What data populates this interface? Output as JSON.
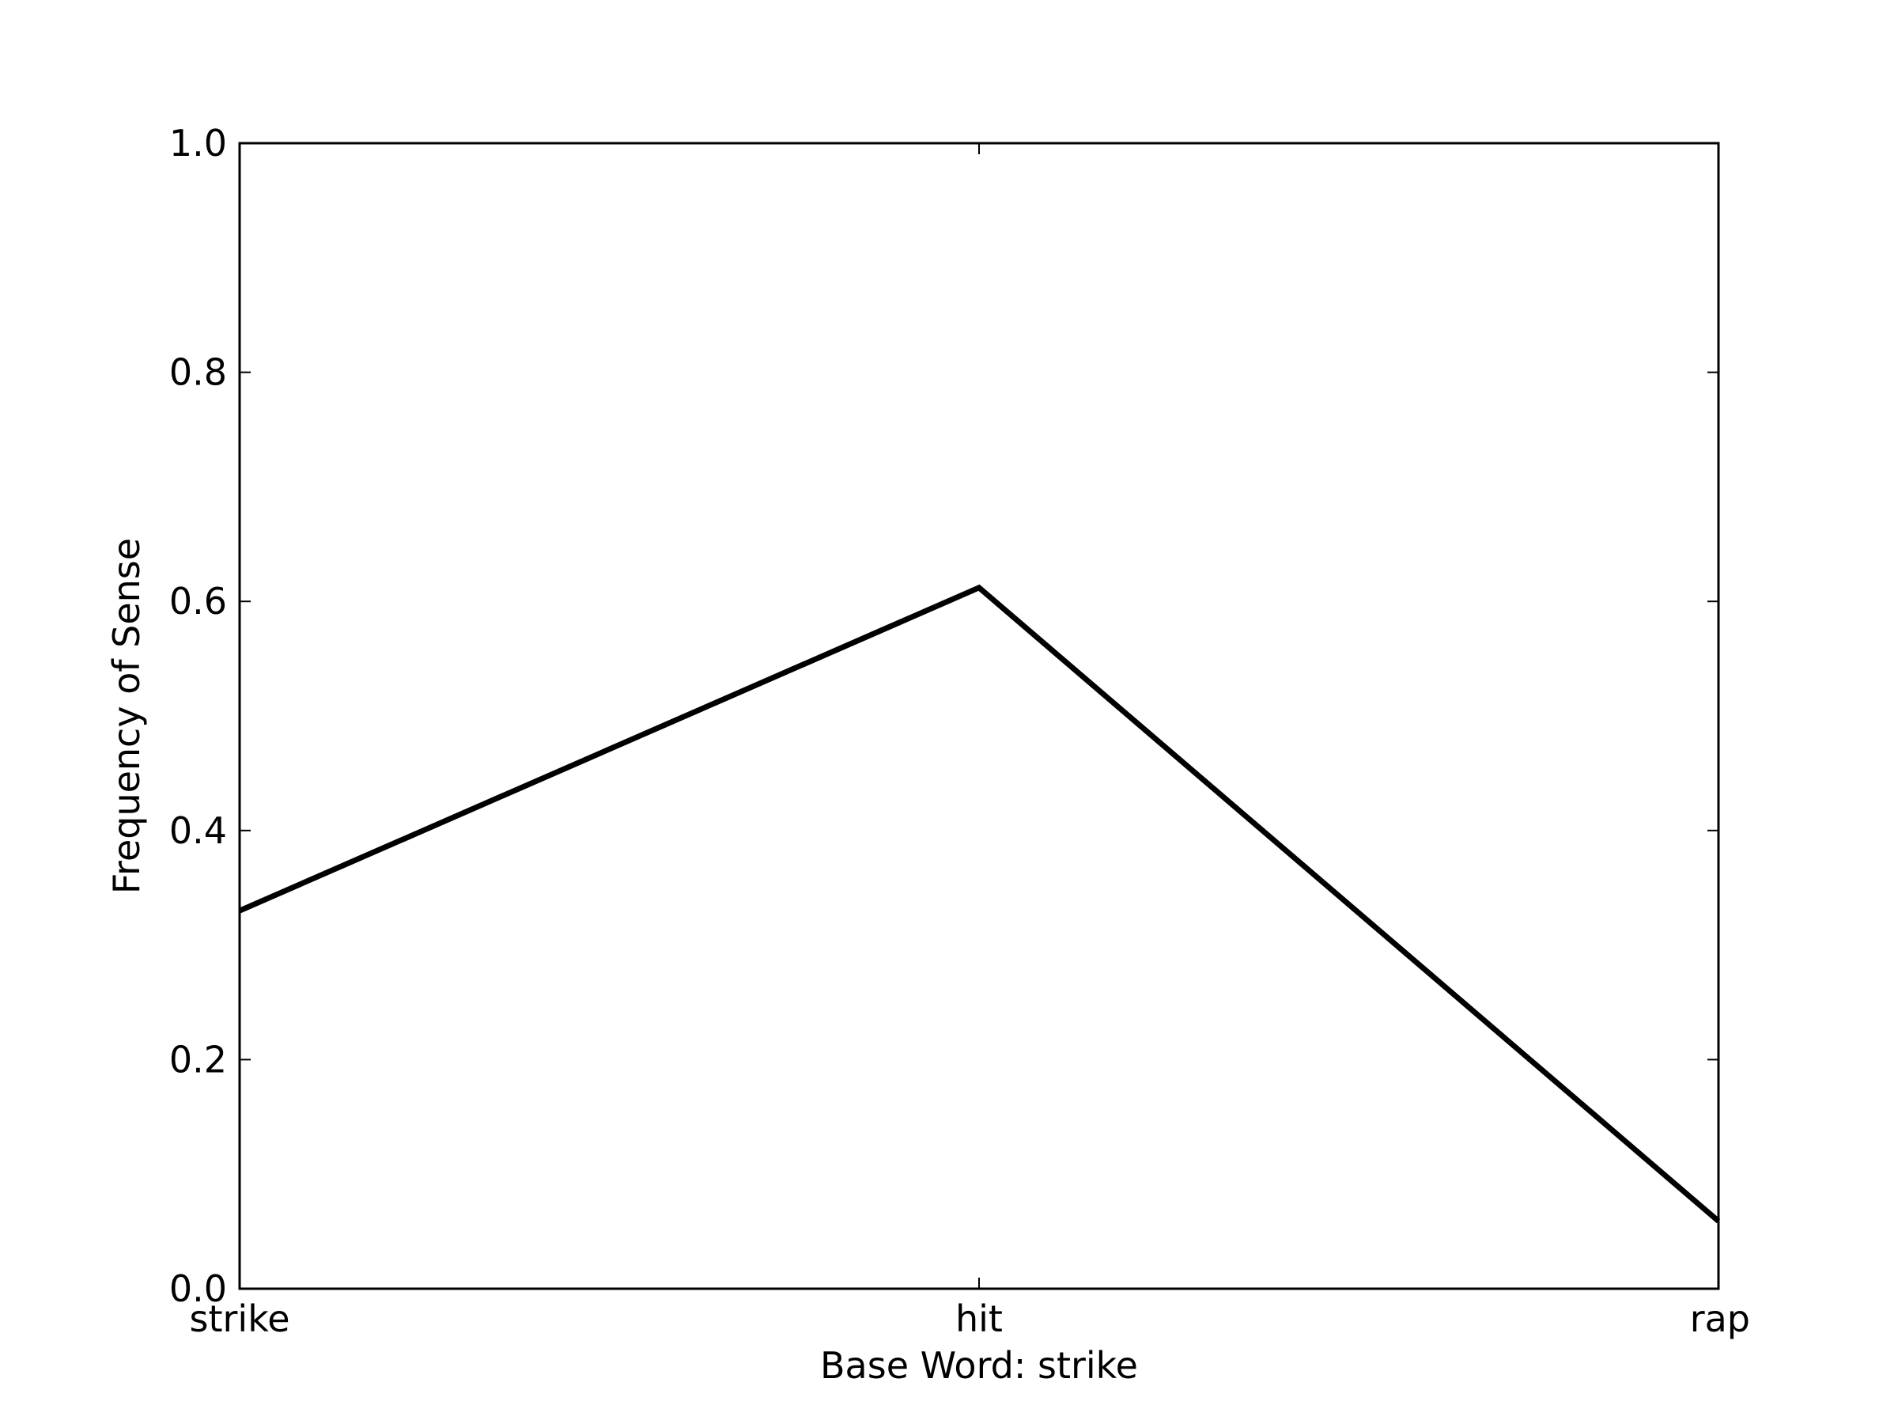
{
  "chart_data": {
    "type": "line",
    "title": "",
    "xlabel": "Base Word: strike",
    "ylabel": "Frequency of Sense",
    "categories": [
      "strike",
      "hit",
      "rap"
    ],
    "series": [
      {
        "values": [
          0.33,
          0.612,
          0.059
        ],
        "color": "#000000"
      }
    ],
    "ylim": [
      0.0,
      1.0
    ],
    "yticks": [
      "0.0",
      "0.2",
      "0.4",
      "0.6",
      "0.8",
      "1.0"
    ],
    "grid": false,
    "legend": "none"
  }
}
